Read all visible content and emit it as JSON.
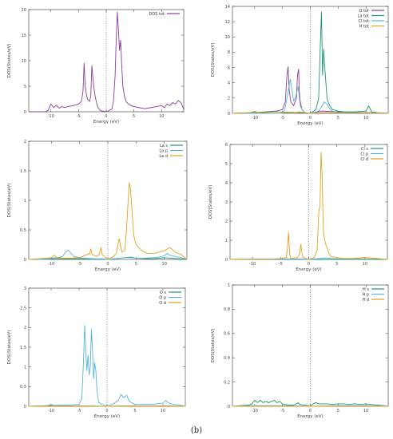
{
  "caption": "(b)",
  "chart_data": [
    {
      "type": "line",
      "title": "",
      "xlabel": "Energy (eV)",
      "ylabel": "DOS(States/eV)",
      "xlim": [
        -14,
        14
      ],
      "ylim": [
        0,
        20
      ],
      "xticks": [
        -10,
        -5,
        0,
        5,
        10
      ],
      "yticks": [
        0,
        5,
        10,
        15,
        20
      ],
      "fermi_level": 0,
      "grid": false,
      "legend_position": "top-right",
      "series": [
        {
          "name": "DOS tot",
          "color": "#8a3c9c",
          "x": [
            -14,
            -11,
            -10.5,
            -10,
            -9.5,
            -9,
            -8.5,
            -8,
            -7.5,
            -7,
            -6,
            -5,
            -4.5,
            -4.2,
            -4,
            -3.8,
            -3.6,
            -3.4,
            -3,
            -2.8,
            -2.6,
            -2.4,
            -2.2,
            -2,
            -1.8,
            -1.5,
            -1,
            0,
            1,
            1.3,
            1.6,
            1.8,
            2,
            2.2,
            2.4,
            2.6,
            2.8,
            3,
            3.3,
            3.6,
            4,
            4.5,
            5,
            6,
            7,
            8,
            9,
            10,
            10.5,
            11,
            11.5,
            12,
            12.5,
            13,
            13.5,
            14
          ],
          "y": [
            0,
            0,
            0.3,
            1.5,
            0.8,
            1.3,
            0.7,
            1,
            0.8,
            1,
            1.2,
            1.5,
            2,
            4,
            9.5,
            5,
            3.5,
            2.5,
            2,
            3,
            9,
            6.5,
            4.5,
            3,
            2,
            0.8,
            0.2,
            0,
            0.5,
            2,
            7,
            14,
            19.5,
            16,
            12,
            14,
            9,
            5,
            3,
            2,
            1.5,
            1.2,
            1,
            0.8,
            0.6,
            0.8,
            1,
            1.2,
            0.8,
            1.5,
            1.2,
            1.8,
            1.5,
            2.2,
            1.8,
            0.5
          ]
        }
      ]
    },
    {
      "type": "line",
      "title": "",
      "xlabel": "Energy (eV)",
      "ylabel": "DOS(States/eV)",
      "xlim": [
        -14,
        14
      ],
      "ylim": [
        0,
        14
      ],
      "xticks": [
        -10,
        -5,
        0,
        5,
        10
      ],
      "yticks": [
        0,
        2,
        4,
        6,
        8,
        10,
        12,
        14
      ],
      "fermi_level": 0,
      "grid": false,
      "legend_position": "top-right",
      "series": [
        {
          "name": "O tot",
          "color": "#8a3c9c",
          "x": [
            -14,
            -10,
            -8,
            -6,
            -5,
            -4.5,
            -4.2,
            -4,
            -3.8,
            -3.5,
            -3,
            -2.5,
            -2.3,
            -2.1,
            -2,
            -1.8,
            -1.5,
            -1,
            0,
            2,
            5,
            10,
            14
          ],
          "y": [
            0,
            0.1,
            0.2,
            0.3,
            0.5,
            1.5,
            5,
            6.1,
            3,
            1.5,
            1,
            2,
            5,
            5.8,
            3,
            1.5,
            0.5,
            0.1,
            0,
            0.3,
            0.2,
            0.1,
            0
          ]
        },
        {
          "name": "La tot",
          "color": "#1a9873",
          "x": [
            -14,
            -10,
            -7,
            -2,
            0,
            1,
            1.5,
            1.8,
            2,
            2.2,
            2.4,
            2.6,
            2.8,
            3,
            3.2,
            3.5,
            4,
            5,
            6,
            8,
            10,
            10.5,
            11,
            12,
            14
          ],
          "y": [
            0,
            0.1,
            0.2,
            0.1,
            0,
            0.5,
            2,
            9,
            13.3,
            5,
            8.4,
            6,
            4,
            2,
            1.5,
            1,
            0.5,
            0.3,
            0.2,
            0.2,
            0.3,
            1,
            0.2,
            0.1,
            0
          ]
        },
        {
          "name": "Cl tot",
          "color": "#55b3de",
          "x": [
            -14,
            -10,
            -5,
            -4.5,
            -4,
            -3.6,
            -3.3,
            -3,
            -2.6,
            -2.2,
            -1.8,
            -1.5,
            -1,
            0,
            1.5,
            2,
            2.5,
            3,
            3.5,
            4,
            5,
            7,
            10,
            14
          ],
          "y": [
            0,
            0,
            0,
            0.8,
            2.8,
            4.5,
            3,
            1.6,
            2.2,
            3.5,
            1,
            0.5,
            0.1,
            0,
            0.3,
            0.8,
            1.5,
            1.2,
            0.6,
            0.3,
            0.1,
            0.1,
            0.1,
            0
          ]
        },
        {
          "name": "H tot",
          "color": "#e6a01a",
          "x": [
            -14,
            -11,
            -10,
            -9.5,
            -8,
            -6,
            -5,
            -3,
            -2,
            0,
            2,
            4,
            6,
            8,
            10,
            14
          ],
          "y": [
            0,
            0.05,
            0.3,
            0.1,
            0.1,
            0.2,
            0.1,
            0.05,
            0.2,
            0,
            0.1,
            0.1,
            0.05,
            0.05,
            0.1,
            0
          ]
        }
      ]
    },
    {
      "type": "line",
      "title": "",
      "xlabel": "Energy (eV)",
      "ylabel": "DOS(States/eV)",
      "xlim": [
        -14,
        14
      ],
      "ylim": [
        0,
        2
      ],
      "xticks": [
        -10,
        -5,
        0,
        5,
        10
      ],
      "yticks": [
        0,
        0.5,
        1,
        1.5,
        2
      ],
      "fermi_level": 0,
      "grid": false,
      "legend_position": "top-right",
      "series": [
        {
          "name": "La s",
          "color": "#1a9873",
          "x": [
            -14,
            -10,
            -5,
            0,
            2,
            3,
            4,
            5,
            8,
            10,
            14
          ],
          "y": [
            0,
            0.01,
            0.01,
            0,
            0.02,
            0.03,
            0.04,
            0.02,
            0.01,
            0.03,
            0
          ]
        },
        {
          "name": "La p",
          "color": "#55b3de",
          "x": [
            -14,
            -11,
            -10,
            -9,
            -8,
            -7.5,
            -7,
            -6.5,
            -6,
            -5,
            -4,
            -2,
            -1,
            0,
            1,
            2,
            3,
            4,
            5,
            6,
            8,
            9,
            10,
            10.5,
            11,
            12,
            13,
            14
          ],
          "y": [
            0,
            0,
            0.02,
            0.03,
            0.05,
            0.12,
            0.16,
            0.1,
            0.05,
            0.03,
            0.02,
            0.01,
            0.01,
            0,
            0.01,
            0.02,
            0.03,
            0.03,
            0.02,
            0.02,
            0.03,
            0.04,
            0.06,
            0.1,
            0.07,
            0.05,
            0.03,
            0
          ]
        },
        {
          "name": "La d",
          "color": "#e6a01a",
          "x": [
            -14,
            -11,
            -10,
            -9.5,
            -9,
            -7,
            -5,
            -3.2,
            -3,
            -2.8,
            -2,
            -1.5,
            -1.2,
            -1,
            0,
            1,
            1.5,
            2,
            2.5,
            3,
            3.3,
            3.6,
            3.8,
            4,
            4.3,
            4.6,
            5,
            5.5,
            6,
            7,
            8,
            9,
            10,
            11,
            12,
            13,
            14
          ],
          "y": [
            0,
            0.02,
            0.03,
            0.07,
            0.03,
            0.02,
            0.03,
            0.1,
            0.18,
            0.08,
            0.05,
            0.08,
            0.2,
            0.08,
            0,
            0.05,
            0.1,
            0.35,
            0.12,
            0.15,
            0.5,
            1,
            1.3,
            1.2,
            0.8,
            0.4,
            0.25,
            0.2,
            0.15,
            0.1,
            0.1,
            0.12,
            0.15,
            0.2,
            0.12,
            0.08,
            0
          ]
        }
      ]
    },
    {
      "type": "line",
      "title": "",
      "xlabel": "Energy (eV)",
      "ylabel": "DOS(States/eV)",
      "xlim": [
        -14,
        14
      ],
      "ylim": [
        0,
        6
      ],
      "xticks": [
        -10,
        -5,
        0,
        5,
        10
      ],
      "yticks": [
        0,
        1,
        2,
        3,
        4,
        5,
        6
      ],
      "fermi_level": 0,
      "grid": false,
      "legend_position": "top-right",
      "series": [
        {
          "name": "Cl s",
          "color": "#1a9873",
          "x": [
            -14,
            -10,
            -5,
            0,
            5,
            10,
            14
          ],
          "y": [
            0,
            0.01,
            0.01,
            0,
            0.01,
            0.01,
            0
          ]
        },
        {
          "name": "Cl p",
          "color": "#55b3de",
          "x": [
            -14,
            -10,
            -5,
            -4,
            -3,
            -2,
            0,
            2,
            3,
            4,
            5,
            8,
            10,
            11,
            12,
            14
          ],
          "y": [
            0,
            0.01,
            0.02,
            0.03,
            0.02,
            0.03,
            0,
            0.05,
            0.08,
            0.05,
            0.03,
            0.05,
            0.1,
            0.08,
            0.05,
            0
          ]
        },
        {
          "name": "Cl d",
          "color": "#e6a01a",
          "x": [
            -14,
            -10,
            -6,
            -5,
            -4,
            -3.8,
            -3.6,
            -3.4,
            -3.2,
            -2,
            -1.6,
            -1.4,
            -1.2,
            -1,
            0,
            1,
            1.5,
            1.8,
            2,
            2.2,
            2.4,
            2.6,
            2.8,
            3,
            3.3,
            3.6,
            4,
            5,
            6,
            8,
            10,
            12,
            14
          ],
          "y": [
            0,
            0.02,
            0.03,
            0.05,
            0.1,
            0.5,
            1.4,
            0.3,
            0.05,
            0.1,
            0.3,
            0.8,
            0.3,
            0.1,
            0,
            0.1,
            0.5,
            2.5,
            2.8,
            5.6,
            4.2,
            1.5,
            1.1,
            0.8,
            0.6,
            0.3,
            0.15,
            0.1,
            0.05,
            0.05,
            0.1,
            0.05,
            0
          ]
        }
      ]
    },
    {
      "type": "line",
      "title": "",
      "xlabel": "Energy (eV)",
      "ylabel": "DOS(States/eV)",
      "xlim": [
        -14,
        14
      ],
      "ylim": [
        0,
        3
      ],
      "xticks": [
        -10,
        -5,
        0,
        5,
        10
      ],
      "yticks": [
        0,
        0.5,
        1,
        1.5,
        2,
        2.5,
        3
      ],
      "fermi_level": 0,
      "grid": false,
      "legend_position": "top-right",
      "series": [
        {
          "name": "O s",
          "color": "#1a9873",
          "x": [
            -14,
            -11,
            -10,
            -9.5,
            -9,
            -7,
            -5,
            0,
            5,
            10,
            14
          ],
          "y": [
            0,
            0.01,
            0.04,
            0.02,
            0.01,
            0.01,
            0.01,
            0,
            0.01,
            0.01,
            0
          ]
        },
        {
          "name": "O p",
          "color": "#55b3de",
          "x": [
            -14,
            -10,
            -8,
            -6,
            -5,
            -4.5,
            -4.2,
            -4,
            -3.8,
            -3.6,
            -3.4,
            -3.2,
            -3,
            -2.8,
            -2.6,
            -2.4,
            -2.2,
            -2,
            -1.8,
            -1.5,
            -1,
            0,
            1,
            2,
            2.5,
            3,
            3.5,
            4,
            5,
            6,
            8,
            10,
            10.5,
            11,
            12,
            13,
            14
          ],
          "y": [
            0,
            0.02,
            0.03,
            0.04,
            0.05,
            0.2,
            1.2,
            2.05,
            1.4,
            0.9,
            1.3,
            0.8,
            1,
            1.95,
            1.4,
            0.7,
            1.1,
            0.9,
            0.4,
            0.1,
            0.05,
            0,
            0.05,
            0.15,
            0.3,
            0.22,
            0.28,
            0.12,
            0.05,
            0.05,
            0.05,
            0.08,
            0.15,
            0.08,
            0.05,
            0.03,
            0
          ]
        },
        {
          "name": "O d",
          "color": "#e6a01a",
          "x": [
            -14,
            -10,
            -5,
            0,
            5,
            10,
            14
          ],
          "y": [
            0,
            0.01,
            0.01,
            0,
            0.01,
            0.01,
            0
          ]
        }
      ]
    },
    {
      "type": "line",
      "title": "",
      "xlabel": "Energy (eV)",
      "ylabel": "DOS(States/eV)",
      "xlim": [
        -14,
        14
      ],
      "ylim": [
        0,
        1
      ],
      "xticks": [
        -10,
        -5,
        0,
        5,
        10
      ],
      "yticks": [
        0,
        0.2,
        0.4,
        0.6,
        0.8,
        1
      ],
      "fermi_level": 0,
      "grid": false,
      "legend_position": "top-right",
      "series": [
        {
          "name": "H s",
          "color": "#1a9873",
          "x": [
            -14,
            -11,
            -10.5,
            -10,
            -9.5,
            -9,
            -8.5,
            -8,
            -7.5,
            -7,
            -6.5,
            -6,
            -5.5,
            -5,
            -4,
            -3,
            -2.5,
            -2.2,
            -2,
            -1.5,
            -1,
            0,
            0.5,
            1,
            1.5,
            2,
            3,
            4,
            5,
            6,
            7,
            8,
            9,
            10,
            11,
            12,
            14
          ],
          "y": [
            0,
            0.01,
            0.02,
            0.05,
            0.03,
            0.05,
            0.03,
            0.04,
            0.03,
            0.04,
            0.05,
            0.03,
            0.04,
            0.02,
            0.01,
            0.01,
            0.02,
            0.03,
            0.02,
            0.01,
            0.01,
            0,
            0.02,
            0.03,
            0.02,
            0.02,
            0.02,
            0.015,
            0.02,
            0.02,
            0.015,
            0.02,
            0.015,
            0.02,
            0.015,
            0.01,
            0
          ]
        },
        {
          "name": "H p",
          "color": "#55b3de",
          "x": [
            -14,
            -10,
            -5,
            0,
            5,
            10,
            14
          ],
          "y": [
            0,
            0.005,
            0.005,
            0,
            0.005,
            0.005,
            0
          ]
        },
        {
          "name": "H d",
          "color": "#e6a01a",
          "x": [
            -14,
            -10,
            -5,
            0,
            5,
            10,
            14
          ],
          "y": [
            0,
            0.002,
            0.002,
            0,
            0.002,
            0.002,
            0
          ]
        }
      ]
    }
  ]
}
